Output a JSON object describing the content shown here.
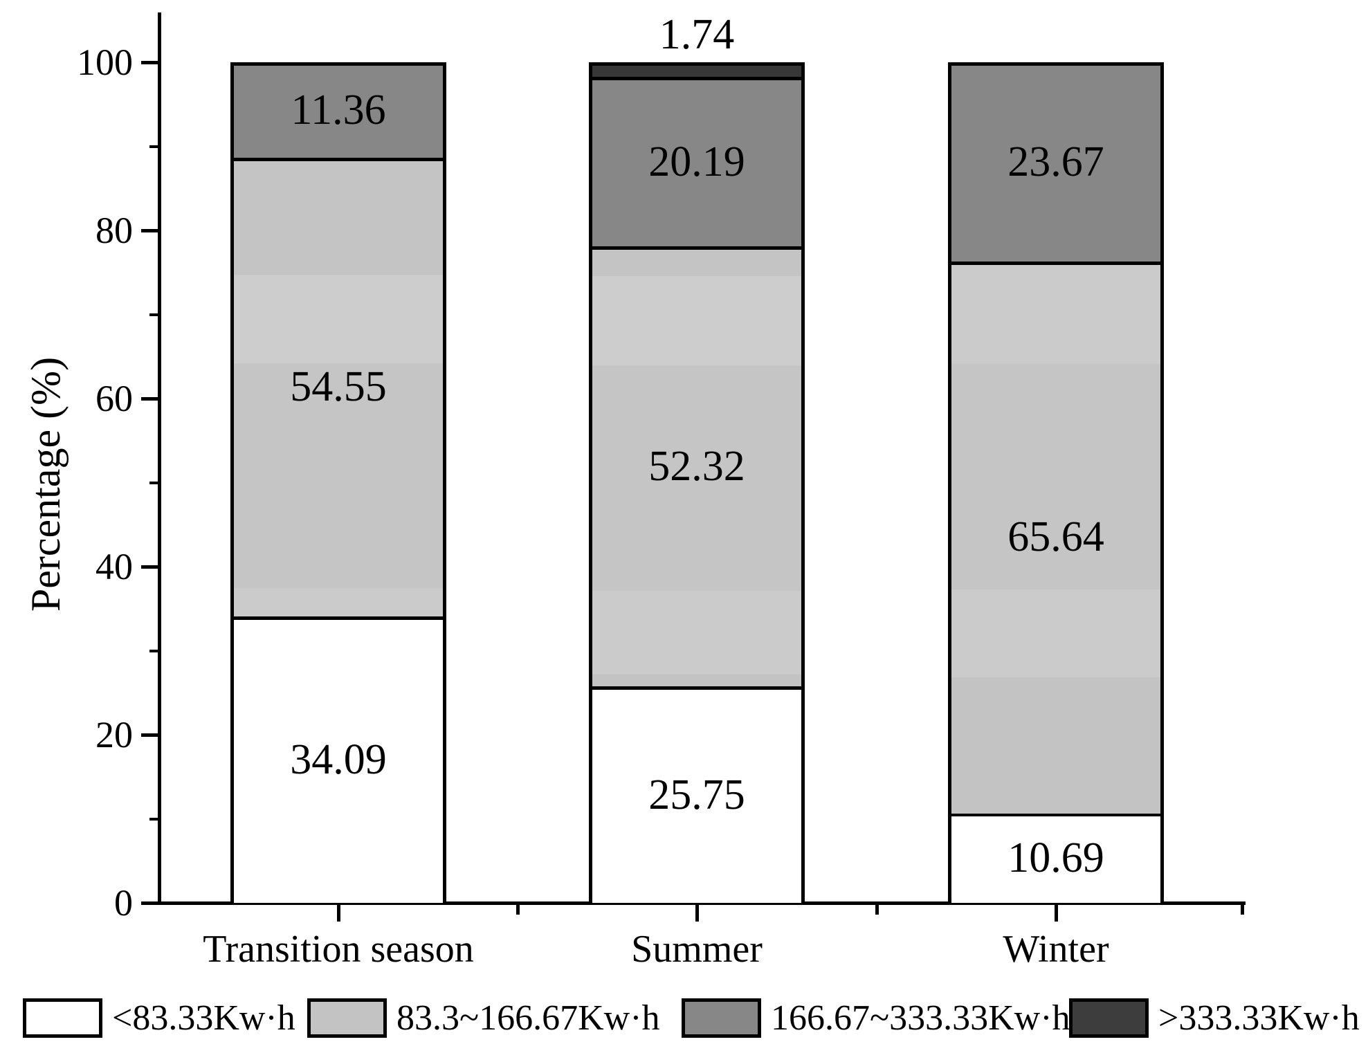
{
  "figure": {
    "background_color": "#ffffff",
    "axis_color": "#000000",
    "text_color": "#000000"
  },
  "chart_data": {
    "type": "bar",
    "stacked": true,
    "orientation": "vertical",
    "title": "",
    "xlabel": "",
    "ylabel": "Percentage (%)",
    "ylim": [
      0,
      100
    ],
    "yticks_major": [
      0,
      20,
      40,
      60,
      80,
      100
    ],
    "yticks_minor": [
      10,
      30,
      50,
      70,
      90
    ],
    "grid": false,
    "legend_position": "bottom",
    "categories": [
      "Transition season",
      "Summer",
      "Winter"
    ],
    "series": [
      {
        "name": "<83.33Kw·h",
        "color": "#ffffff",
        "values": [
          34.09,
          25.75,
          10.69
        ]
      },
      {
        "name": "83.3~166.67Kw·h",
        "color": "#c6c6c6",
        "values": [
          54.55,
          52.32,
          65.64
        ]
      },
      {
        "name": "166.67~333.33Kw·h",
        "color": "#878787",
        "values": [
          11.36,
          20.19,
          23.67
        ]
      },
      {
        "name": ">333.33Kw·h",
        "color": "#373737",
        "values": [
          0,
          1.74,
          0
        ]
      }
    ],
    "value_labels": [
      [
        "34.09",
        "25.75",
        "10.69"
      ],
      [
        "54.55",
        "52.32",
        "65.64"
      ],
      [
        "11.36",
        "20.19",
        "23.67"
      ],
      [
        "",
        "1.74",
        ""
      ]
    ],
    "shade_bands_note": "subtle horizontal shade banding visible inside the light-gray segments",
    "shade_bands": [
      [
        {
          "to": 37.5,
          "c": "#cbcbcb"
        },
        {
          "to": 64.4,
          "c": "#c5c5c5"
        },
        {
          "to": 75.0,
          "c": "#cdcdcd"
        },
        {
          "to": 88.64,
          "c": "#c4c4c4"
        }
      ],
      [
        {
          "to": 27.2,
          "c": "#c3c3c3"
        },
        {
          "to": 37.2,
          "c": "#cbcbcb"
        },
        {
          "to": 64.2,
          "c": "#c5c5c5"
        },
        {
          "to": 74.9,
          "c": "#cdcdcd"
        },
        {
          "to": 78.07,
          "c": "#c4c4c4"
        }
      ],
      [
        {
          "to": 27.0,
          "c": "#c3c3c3"
        },
        {
          "to": 37.5,
          "c": "#cbcbcb"
        },
        {
          "to": 64.5,
          "c": "#c5c5c5"
        },
        {
          "to": 76.33,
          "c": "#cbcbcb"
        }
      ]
    ],
    "legend_swatch_colors": [
      "#ffffff",
      "#c3c3c3",
      "#878787",
      "#3d3d3d"
    ]
  }
}
